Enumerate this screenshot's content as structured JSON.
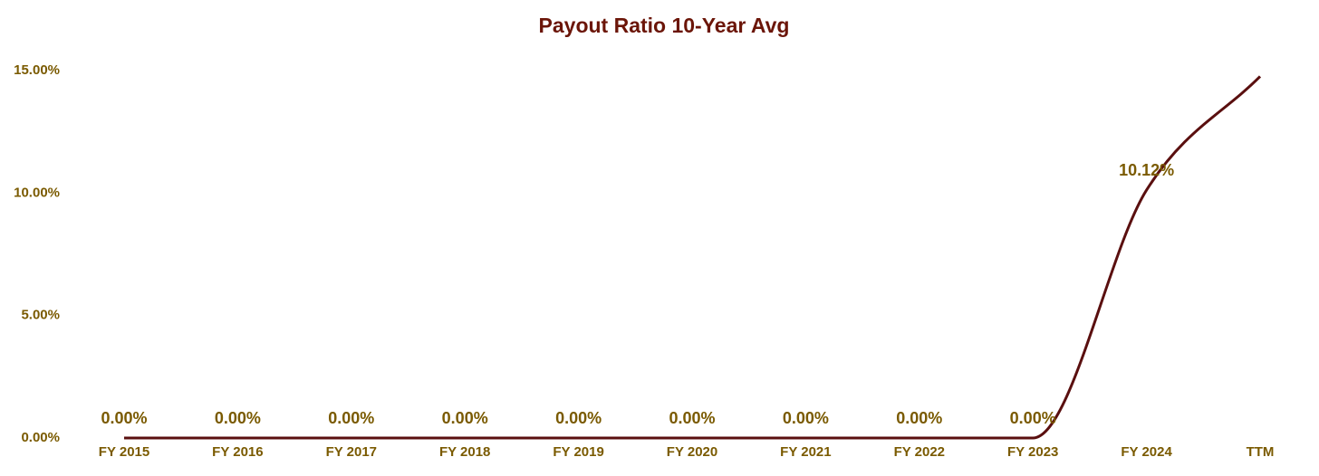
{
  "chart_data": {
    "type": "line",
    "title": "Payout Ratio 10-Year Avg",
    "categories": [
      "FY 2015",
      "FY 2016",
      "FY 2017",
      "FY 2018",
      "FY 2019",
      "FY 2020",
      "FY 2021",
      "FY 2022",
      "FY 2023",
      "FY 2024",
      "TTM"
    ],
    "values": [
      0,
      0,
      0,
      0,
      0,
      0,
      0,
      0,
      0,
      10.12,
      14.76
    ],
    "value_labels": [
      "0.00%",
      "0.00%",
      "0.00%",
      "0.00%",
      "0.00%",
      "0.00%",
      "0.00%",
      "0.00%",
      "0.00%",
      "10.12%",
      null
    ],
    "color": "#5a0f0f",
    "ylim": [
      0,
      15
    ],
    "yticks": [
      {
        "value": 0,
        "label": "0.00%"
      },
      {
        "value": 5,
        "label": "5.00%"
      },
      {
        "value": 10,
        "label": "10.00%"
      },
      {
        "value": 15,
        "label": "15.00%"
      }
    ],
    "grid": false
  }
}
